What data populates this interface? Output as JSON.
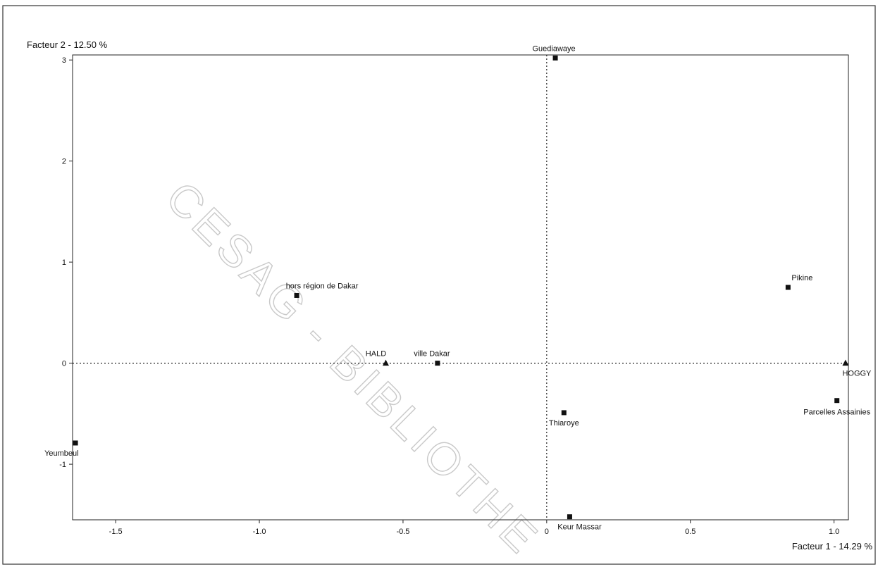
{
  "chart_data": {
    "type": "scatter",
    "xlabel": "Facteur 1  -  14.29 %",
    "ylabel": "Facteur 2  -  12.50 %",
    "xlim": [
      -1.65,
      1.05
    ],
    "ylim": [
      -1.55,
      3.05
    ],
    "x_ticks": [
      {
        "value": -1.5,
        "label": "-1.5"
      },
      {
        "value": -1.0,
        "label": "-1.0"
      },
      {
        "value": -0.5,
        "label": "-0.5"
      },
      {
        "value": 0,
        "label": "0"
      },
      {
        "value": 0.5,
        "label": "0.5"
      },
      {
        "value": 1.0,
        "label": "1.0"
      }
    ],
    "y_ticks": [
      {
        "value": -1,
        "label": "-1"
      },
      {
        "value": 0,
        "label": "0"
      },
      {
        "value": 1,
        "label": "1"
      },
      {
        "value": 2,
        "label": "2"
      },
      {
        "value": 3,
        "label": "3"
      }
    ],
    "reference_lines": {
      "x": 0,
      "y": 0,
      "style": "dotted"
    },
    "points": [
      {
        "label": "Guediawaye",
        "x": 0.03,
        "y": 3.02,
        "marker": "square"
      },
      {
        "label": "hors région de Dakar",
        "x": -0.87,
        "y": 0.67,
        "marker": "square"
      },
      {
        "label": "Pikine",
        "x": 0.84,
        "y": 0.75,
        "marker": "square"
      },
      {
        "label": "ville Dakar",
        "x": -0.38,
        "y": 0.0,
        "marker": "square"
      },
      {
        "label": "HALD",
        "x": -0.56,
        "y": 0.0,
        "marker": "triangle"
      },
      {
        "label": "HOGGY",
        "x": 1.04,
        "y": 0.0,
        "marker": "triangle"
      },
      {
        "label": "Parcelles Assainies",
        "x": 1.01,
        "y": -0.37,
        "marker": "square"
      },
      {
        "label": "Thiaroye",
        "x": 0.06,
        "y": -0.49,
        "marker": "square"
      },
      {
        "label": "Yeumbeul",
        "x": -1.64,
        "y": -0.79,
        "marker": "square"
      },
      {
        "label": "Keur Massar",
        "x": 0.08,
        "y": -1.52,
        "marker": "square"
      }
    ],
    "grid": false,
    "legend": "none"
  },
  "watermark": "CESAG - BIBLIOTHE"
}
